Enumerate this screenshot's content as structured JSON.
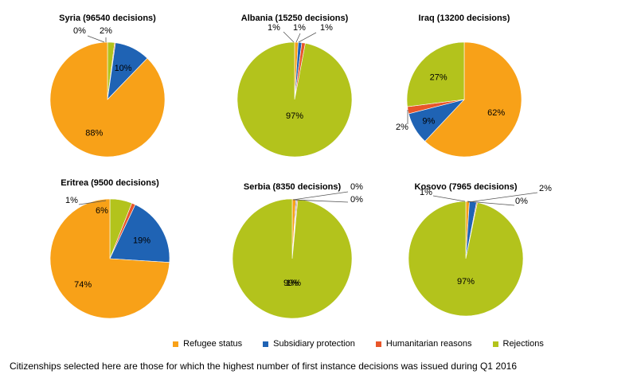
{
  "colors": {
    "refugee": "#F8A118",
    "subsidiary": "#1F63B4",
    "humanitarian": "#E8562A",
    "rejections": "#B3C31C"
  },
  "legend": [
    {
      "key": "refugee",
      "label": "Refugee  status"
    },
    {
      "key": "subsidiary",
      "label": "Subsidiary protection"
    },
    {
      "key": "humanitarian",
      "label": "Humanitarian reasons"
    },
    {
      "key": "rejections",
      "label": "Rejections"
    }
  ],
  "footnote": "Citizenships selected here are those for which the highest number of first instance decisions was issued during Q1 2016",
  "chart_data": [
    {
      "type": "pie",
      "title": "Syria (96540 decisions)",
      "slices": [
        {
          "series": "rejections",
          "value": 2,
          "label": "2%"
        },
        {
          "series": "humanitarian",
          "value": 0,
          "label": "0%"
        },
        {
          "series": "subsidiary",
          "value": 10,
          "label": "10%"
        },
        {
          "series": "refugee",
          "value": 88,
          "label": "88%"
        }
      ]
    },
    {
      "type": "pie",
      "title": "Albania (15250 decisions)",
      "slices": [
        {
          "series": "refugee",
          "value": 1,
          "label": "1%"
        },
        {
          "series": "subsidiary",
          "value": 1,
          "label": "1%"
        },
        {
          "series": "humanitarian",
          "value": 1,
          "label": "1%"
        },
        {
          "series": "rejections",
          "value": 97,
          "label": "97%"
        }
      ]
    },
    {
      "type": "pie",
      "title": "Iraq (13200 decisions)",
      "slices": [
        {
          "series": "refugee",
          "value": 62,
          "label": "62%"
        },
        {
          "series": "subsidiary",
          "value": 9,
          "label": "9%"
        },
        {
          "series": "humanitarian",
          "value": 2,
          "label": "2%"
        },
        {
          "series": "rejections",
          "value": 27,
          "label": "27%"
        }
      ]
    },
    {
      "type": "pie",
      "title": "Eritrea (9500 decisions)",
      "slices": [
        {
          "series": "refugee",
          "value": 74,
          "label": "74%"
        },
        {
          "series": "subsidiary",
          "value": 19,
          "label": "19%"
        },
        {
          "series": "humanitarian",
          "value": 1,
          "label": "1%"
        },
        {
          "series": "rejections",
          "value": 6,
          "label": "6%"
        }
      ]
    },
    {
      "type": "pie",
      "title": "Serbia (8350 decisions)",
      "slices": [
        {
          "series": "refugee",
          "value": 1,
          "label": "1%"
        },
        {
          "series": "subsidiary",
          "value": 0,
          "label": "0%"
        },
        {
          "series": "humanitarian",
          "value": 0,
          "label": "0%"
        },
        {
          "series": "rejections",
          "value": 99,
          "label": "99%"
        }
      ]
    },
    {
      "type": "pie",
      "title": "Kosovo (7965 decisions)",
      "slices": [
        {
          "series": "refugee",
          "value": 1,
          "label": "1%"
        },
        {
          "series": "subsidiary",
          "value": 2,
          "label": "2%"
        },
        {
          "series": "humanitarian",
          "value": 0,
          "label": "0%"
        },
        {
          "series": "rejections",
          "value": 97,
          "label": "97%"
        }
      ]
    }
  ]
}
